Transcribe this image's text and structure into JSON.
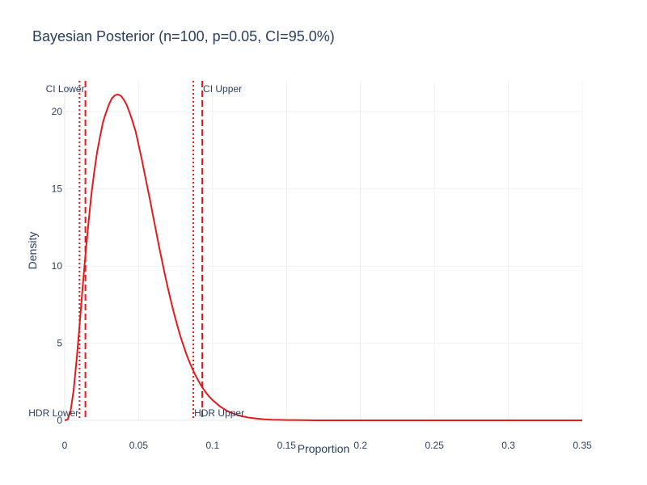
{
  "chart_data": {
    "type": "line",
    "title": "Bayesian Posterior (n=100, p=0.05, CI=95.0%)",
    "xlabel": "Proportion",
    "ylabel": "Density",
    "xlim": [
      0,
      0.35
    ],
    "ylim": [
      0,
      22
    ],
    "grid": true,
    "colors": {
      "line": "#e31a1c",
      "text": "#2a3f5f",
      "grid": "#eef0f4",
      "zeroline": "#e5e7ec"
    },
    "x_ticks": [
      {
        "v": 0,
        "label": "0"
      },
      {
        "v": 0.05,
        "label": "0.05"
      },
      {
        "v": 0.1,
        "label": "0.1"
      },
      {
        "v": 0.15,
        "label": "0.15"
      },
      {
        "v": 0.2,
        "label": "0.2"
      },
      {
        "v": 0.25,
        "label": "0.25"
      },
      {
        "v": 0.3,
        "label": "0.3"
      },
      {
        "v": 0.35,
        "label": "0.35"
      }
    ],
    "y_ticks": [
      {
        "v": 0,
        "label": "0"
      },
      {
        "v": 5,
        "label": "5"
      },
      {
        "v": 10,
        "label": "10"
      },
      {
        "v": 15,
        "label": "15"
      },
      {
        "v": 20,
        "label": "20"
      }
    ],
    "series": [
      {
        "x": [
          0,
          0.002,
          0.004,
          0.006,
          0.008,
          0.01,
          0.012,
          0.014,
          0.016,
          0.018,
          0.02,
          0.022,
          0.024,
          0.026,
          0.028,
          0.03,
          0.032,
          0.034,
          0.036,
          0.038,
          0.04,
          0.042,
          0.044,
          0.046,
          0.048,
          0.05,
          0.052,
          0.054,
          0.056,
          0.058,
          0.06,
          0.062,
          0.064,
          0.066,
          0.068,
          0.07,
          0.072,
          0.074,
          0.076,
          0.078,
          0.08,
          0.082,
          0.084,
          0.086,
          0.088,
          0.09,
          0.092,
          0.094,
          0.096,
          0.098,
          0.1,
          0.105,
          0.11,
          0.115,
          0.12,
          0.125,
          0.13,
          0.135,
          0.14,
          0.145,
          0.15,
          0.16,
          0.17,
          0.18,
          0.2,
          0.25,
          0.3,
          0.35
        ],
        "y": [
          0,
          0.06,
          0.61,
          1.93,
          3.85,
          6.11,
          8.43,
          10.7,
          12.74,
          14.61,
          16.13,
          17.42,
          18.44,
          19.36,
          19.95,
          20.49,
          20.88,
          21.06,
          21.12,
          21.03,
          20.78,
          20.42,
          19.91,
          19.34,
          18.7,
          17.85,
          16.96,
          16.02,
          15.07,
          14.12,
          13.12,
          12.14,
          11.18,
          10.24,
          9.34,
          8.48,
          7.66,
          6.9,
          6.19,
          5.53,
          4.93,
          4.37,
          3.87,
          3.41,
          3.0,
          2.63,
          2.3,
          2.0,
          1.74,
          1.51,
          1.31,
          0.9,
          0.6,
          0.4,
          0.26,
          0.17,
          0.11,
          0.07,
          0.04,
          0.03,
          0.02,
          0.01,
          0,
          0,
          0,
          0,
          0,
          0
        ]
      }
    ],
    "vlines": [
      {
        "x": 0.01,
        "style": "dotted",
        "label": "HDR Lower",
        "label_pos": "bottom-left"
      },
      {
        "x": 0.014,
        "style": "dashed",
        "label": "CI Lower",
        "label_pos": "top-left"
      },
      {
        "x": 0.087,
        "style": "dotted",
        "label": "HDR Upper",
        "label_pos": "bottom-right"
      },
      {
        "x": 0.093,
        "style": "dashed",
        "label": "CI Upper",
        "label_pos": "top-right"
      }
    ]
  }
}
